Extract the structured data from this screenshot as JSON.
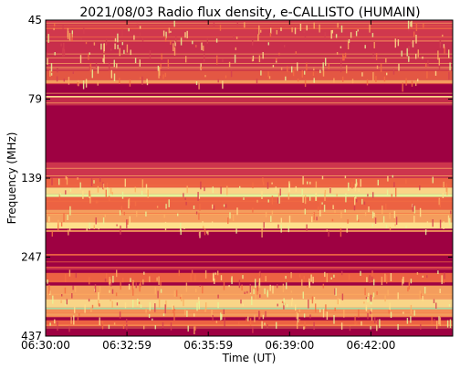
{
  "chart_data": {
    "type": "heatmap",
    "title": "2021/08/03  Radio flux density, e-CALLISTO (HUMAIN)",
    "xlabel": "Time (UT)",
    "ylabel": "Frequency (MHz)",
    "x_ticks": [
      "06:30:00",
      "06:32:59",
      "06:35:59",
      "06:39:00",
      "06:42:00"
    ],
    "y_ticks": [
      "45",
      "79",
      "139",
      "247",
      "437"
    ],
    "y_axis_direction": "frequency increases downward",
    "colormap": "Spectral_r",
    "colors": {
      "background": "#9e0142",
      "low": "#9e0142",
      "mid_low": "#d53e4f",
      "mid": "#f46d43",
      "mid_high": "#fdae61",
      "high": "#fee08b",
      "very_high": "#e6f598",
      "peak": "#abdda4"
    }
  }
}
